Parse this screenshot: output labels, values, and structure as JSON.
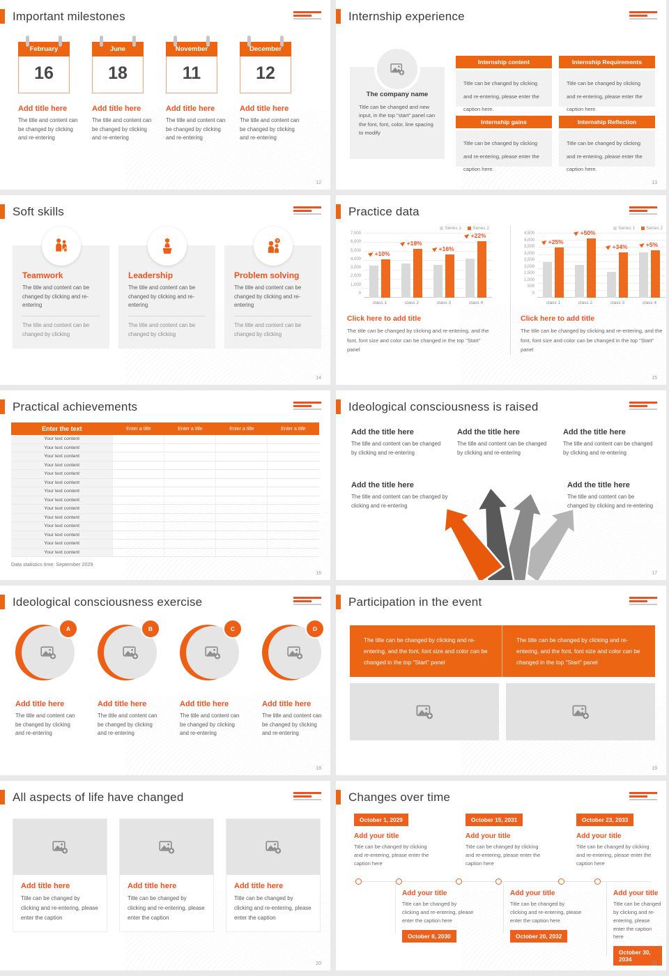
{
  "theme": {
    "orange": "#EC6513",
    "orange_red": "#F0511F",
    "dark_text": "#3B3B3B",
    "caption_gray": "#595959",
    "bar_gray": "#D9D9D9",
    "bar_orange": "#ED6A1F"
  },
  "s12": {
    "title": "Important milestones",
    "page": "12",
    "item_title": "Add title here",
    "caption": "The title and content can be changed by clicking and re-entering",
    "months": [
      {
        "name": "February",
        "day": "16"
      },
      {
        "name": "June",
        "day": "18"
      },
      {
        "name": "November",
        "day": "11"
      },
      {
        "name": "December",
        "day": "12"
      }
    ]
  },
  "s13": {
    "title": "Internship experience",
    "page": "13",
    "company_name": "The company name",
    "company_caption": "Title can be changed and new input, in the top \"start\" panel can the font, font, color, line spacing to modify",
    "panel_caption": "Title can be changed by clicking and re-entering, please enter the caption here.",
    "panels": [
      {
        "head": "Internship content"
      },
      {
        "head": "Internship Requirements"
      },
      {
        "head": "Internship gains"
      },
      {
        "head": "Internship Reflection"
      }
    ]
  },
  "s14": {
    "title": "Soft skills",
    "page": "14",
    "caption1": "The title and content can be changed by clicking and re-entering",
    "caption2": "The title and content can be changed by clicking",
    "cards": [
      {
        "name": "Teamwork"
      },
      {
        "name": "Leadership"
      },
      {
        "name": "Problem solving"
      }
    ]
  },
  "s15": {
    "title": "Practice data",
    "page": "15"
  },
  "s16": {
    "title": "Practical achievements",
    "page": "16",
    "headers": [
      "Enter the text",
      "Enter a title",
      "Enter a title",
      "Enter a title",
      "Enter a title"
    ],
    "row_text": "Your text content",
    "footer": "Data statistics time: September 2029"
  },
  "s17": {
    "title": "Ideological consciousness is raised",
    "page": "17",
    "item_title": "Add the title here",
    "caption": "The title and content can be changed by clicking and re-entering"
  },
  "s18": {
    "title": "Ideological consciousness exercise",
    "page": "18",
    "item_title": "Add title here",
    "caption": "The title and content can be changed by clicking and re-entering",
    "badges": [
      "A",
      "B",
      "C",
      "D"
    ]
  },
  "s19": {
    "title": "Participation in the event",
    "page": "19",
    "banner_text": "The title can be changed by clicking and re-entering, and the font, font size and color can be changed in the top \"Start\" panel"
  },
  "s20": {
    "title": "All aspects of life have changed",
    "page": "20",
    "item_title": "Add title here",
    "caption": "Title can be changed by clicking and re-entering, please enter the caption"
  },
  "s21": {
    "title": "Changes over time",
    "page": "21",
    "item_title": "Add your title",
    "caption": "Title can be changed by clicking and re-entering, please enter the caption here",
    "top_dates": [
      "October 1, 2029",
      "October 15, 2031",
      "October 23, 2033"
    ],
    "bottom_dates": [
      "October 8, 2030",
      "October 20, 2032",
      "October 30, 2034"
    ]
  },
  "chart_data": [
    {
      "type": "bar",
      "title": "Click here to add title",
      "caption": "The title can be changed by clicking and re-entering, and the font, font size and color can be changed in the top \"Start\" panel",
      "categories": [
        "class 1",
        "class 2",
        "class 3",
        "class 4"
      ],
      "series": [
        {
          "name": "Series 1",
          "color": "#D9D9D9",
          "values": [
            3500,
            3700,
            3600,
            4300
          ]
        },
        {
          "name": "Series 2",
          "color": "#ED6A1F",
          "values": [
            4200,
            5300,
            4750,
            6200
          ]
        }
      ],
      "labels": [
        "+10%",
        "+18%",
        "+16%",
        "+22%"
      ],
      "ylim": [
        0,
        7000
      ],
      "ytick": 1000,
      "grid": true,
      "legend_position": "top-right"
    },
    {
      "type": "bar",
      "title": "Click here to add title",
      "caption": "The title can be changed by clicking and re-entering, and the font, font size and color can be changed in the top \"Start\" panel",
      "categories": [
        "class 1",
        "class 2",
        "class 3",
        "class 4"
      ],
      "series": [
        {
          "name": "Series 1",
          "color": "#D9D9D9",
          "values": [
            2500,
            2300,
            1800,
            3200
          ]
        },
        {
          "name": "Series 2",
          "color": "#ED6A1F",
          "values": [
            3500,
            4150,
            3200,
            3350
          ]
        }
      ],
      "labels": [
        "+25%",
        "+50%",
        "+34%",
        "+5%"
      ],
      "ylim": [
        0,
        4500
      ],
      "ytick": 500,
      "grid": true,
      "legend_position": "top-right"
    }
  ]
}
